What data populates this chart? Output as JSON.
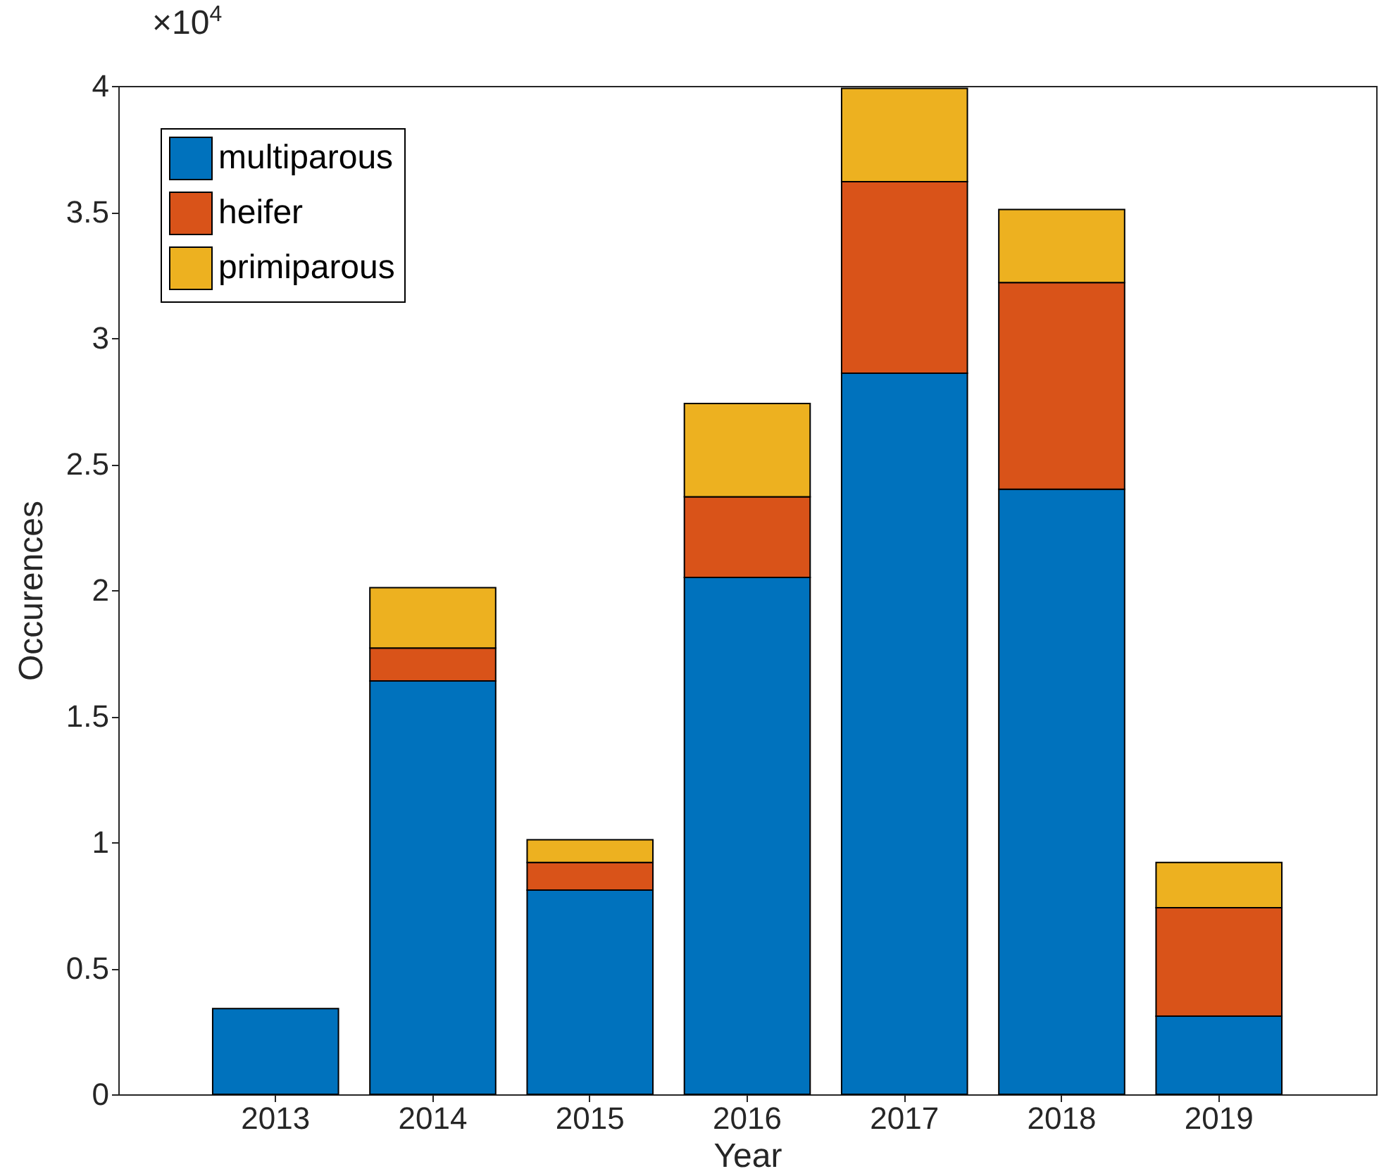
{
  "chart_data": {
    "type": "bar",
    "stacked": true,
    "xlabel": "Year",
    "ylabel": "Occurences",
    "categories": [
      "2013",
      "2014",
      "2015",
      "2016",
      "2017",
      "2018",
      "2019"
    ],
    "series": [
      {
        "name": "multiparous",
        "color": "#0072bd",
        "values": [
          0.34,
          1.64,
          0.81,
          2.05,
          2.86,
          2.4,
          0.31
        ]
      },
      {
        "name": "heifer",
        "color": "#d95319",
        "values": [
          null,
          0.13,
          0.11,
          0.32,
          0.76,
          0.82,
          0.43
        ]
      },
      {
        "name": "primiparous",
        "color": "#edb120",
        "values": [
          null,
          0.24,
          0.09,
          0.37,
          0.37,
          0.29,
          0.18
        ]
      }
    ],
    "ylim": [
      0,
      4
    ],
    "yticks": [
      0,
      0.5,
      1,
      1.5,
      2,
      2.5,
      3,
      3.5,
      4
    ],
    "annotations": [
      "×10$^{4}$"
    ],
    "legend": "top left",
    "grid": false
  }
}
